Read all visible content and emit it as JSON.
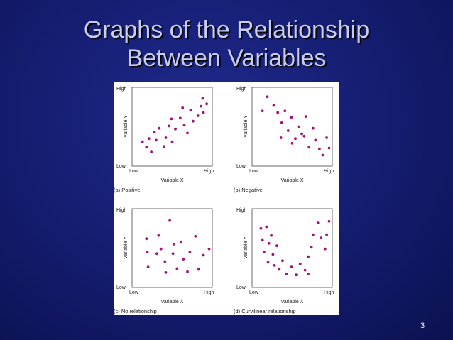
{
  "slide": {
    "title_line1": "Graphs of the Relationship",
    "title_line2": "Between Variables",
    "page_number": "3"
  },
  "chart_data": [
    {
      "type": "scatter",
      "caption": "(a) Positive",
      "xlabel": "Variable X",
      "ylabel": "Variable Y",
      "x_ticks": [
        "Low",
        "High"
      ],
      "y_ticks": [
        "High",
        "Low"
      ],
      "xlim": [
        0,
        10
      ],
      "ylim": [
        0,
        10
      ],
      "color": "#a3127a",
      "points": [
        [
          1.3,
          3.1
        ],
        [
          1.8,
          2.4
        ],
        [
          2.4,
          1.8
        ],
        [
          2.1,
          3.5
        ],
        [
          2.8,
          4.3
        ],
        [
          3.4,
          4.8
        ],
        [
          4.0,
          2.5
        ],
        [
          4.2,
          3.6
        ],
        [
          4.6,
          5.1
        ],
        [
          5.0,
          3.1
        ],
        [
          5.4,
          4.7
        ],
        [
          6.0,
          6.1
        ],
        [
          6.5,
          5.2
        ],
        [
          6.9,
          4.2
        ],
        [
          7.3,
          7.1
        ],
        [
          7.6,
          5.7
        ],
        [
          8.2,
          6.4
        ],
        [
          8.6,
          7.6
        ],
        [
          8.9,
          6.8
        ],
        [
          9.3,
          7.9
        ],
        [
          8.8,
          8.6
        ],
        [
          4.9,
          6.0
        ],
        [
          6.3,
          7.4
        ],
        [
          3.0,
          3.3
        ]
      ]
    },
    {
      "type": "scatter",
      "caption": "(b) Negative",
      "xlabel": "Variable X",
      "ylabel": "Variable Y",
      "x_ticks": [
        "Low",
        "High"
      ],
      "y_ticks": [
        "High",
        "Low"
      ],
      "xlim": [
        0,
        10
      ],
      "ylim": [
        0,
        10
      ],
      "color": "#a3127a",
      "points": [
        [
          1.3,
          7.0
        ],
        [
          1.9,
          8.8
        ],
        [
          2.7,
          7.7
        ],
        [
          3.2,
          6.8
        ],
        [
          3.7,
          5.5
        ],
        [
          4.1,
          7.0
        ],
        [
          4.5,
          4.5
        ],
        [
          4.9,
          6.2
        ],
        [
          5.4,
          3.5
        ],
        [
          5.8,
          5.0
        ],
        [
          6.2,
          4.1
        ],
        [
          6.7,
          6.3
        ],
        [
          7.1,
          2.4
        ],
        [
          7.6,
          4.8
        ],
        [
          7.9,
          3.3
        ],
        [
          8.4,
          2.2
        ],
        [
          8.8,
          1.4
        ],
        [
          9.3,
          3.6
        ],
        [
          9.6,
          2.3
        ],
        [
          3.6,
          3.6
        ],
        [
          5.0,
          2.9
        ],
        [
          6.5,
          3.8
        ]
      ]
    },
    {
      "type": "scatter",
      "caption": "(c) No relationship",
      "xlabel": "Variable X",
      "ylabel": "Variable Y",
      "x_ticks": [
        "Low",
        "High"
      ],
      "y_ticks": [
        "High",
        "Low"
      ],
      "xlim": [
        0,
        10
      ],
      "ylim": [
        0,
        10
      ],
      "color": "#a3127a",
      "points": [
        [
          1.8,
          6.2
        ],
        [
          1.9,
          4.5
        ],
        [
          2.0,
          2.6
        ],
        [
          3.3,
          6.6
        ],
        [
          3.6,
          4.9
        ],
        [
          4.1,
          3.3
        ],
        [
          4.2,
          1.9
        ],
        [
          4.7,
          8.5
        ],
        [
          5.1,
          4.3
        ],
        [
          5.6,
          2.4
        ],
        [
          6.1,
          5.8
        ],
        [
          6.4,
          3.6
        ],
        [
          6.9,
          2.0
        ],
        [
          7.2,
          4.5
        ],
        [
          7.9,
          6.5
        ],
        [
          8.3,
          2.3
        ],
        [
          8.9,
          4.1
        ],
        [
          9.6,
          4.9
        ],
        [
          3.1,
          4.3
        ],
        [
          5.2,
          5.5
        ]
      ]
    },
    {
      "type": "scatter",
      "caption": "(d) Curvilinear relationship",
      "xlabel": "Variable X",
      "ylabel": "Variable Y",
      "x_ticks": [
        "Low",
        "High"
      ],
      "y_ticks": [
        "High",
        "Low"
      ],
      "xlim": [
        0,
        10
      ],
      "ylim": [
        0,
        10
      ],
      "color": "#a3127a",
      "points": [
        [
          1.1,
          7.5
        ],
        [
          1.3,
          6.0
        ],
        [
          1.5,
          4.5
        ],
        [
          1.8,
          7.7
        ],
        [
          2.0,
          3.2
        ],
        [
          2.1,
          5.6
        ],
        [
          2.4,
          6.6
        ],
        [
          2.6,
          4.2
        ],
        [
          2.8,
          2.8
        ],
        [
          3.1,
          5.3
        ],
        [
          3.4,
          2.3
        ],
        [
          3.8,
          3.4
        ],
        [
          4.3,
          1.7
        ],
        [
          4.9,
          2.6
        ],
        [
          5.5,
          1.6
        ],
        [
          6.0,
          3.0
        ],
        [
          6.6,
          2.2
        ],
        [
          7.0,
          3.9
        ],
        [
          7.4,
          5.1
        ],
        [
          7.6,
          6.7
        ],
        [
          8.2,
          8.2
        ],
        [
          8.6,
          6.3
        ],
        [
          9.1,
          4.9
        ],
        [
          9.3,
          6.7
        ],
        [
          9.6,
          8.4
        ],
        [
          7.0,
          1.7
        ]
      ]
    }
  ]
}
